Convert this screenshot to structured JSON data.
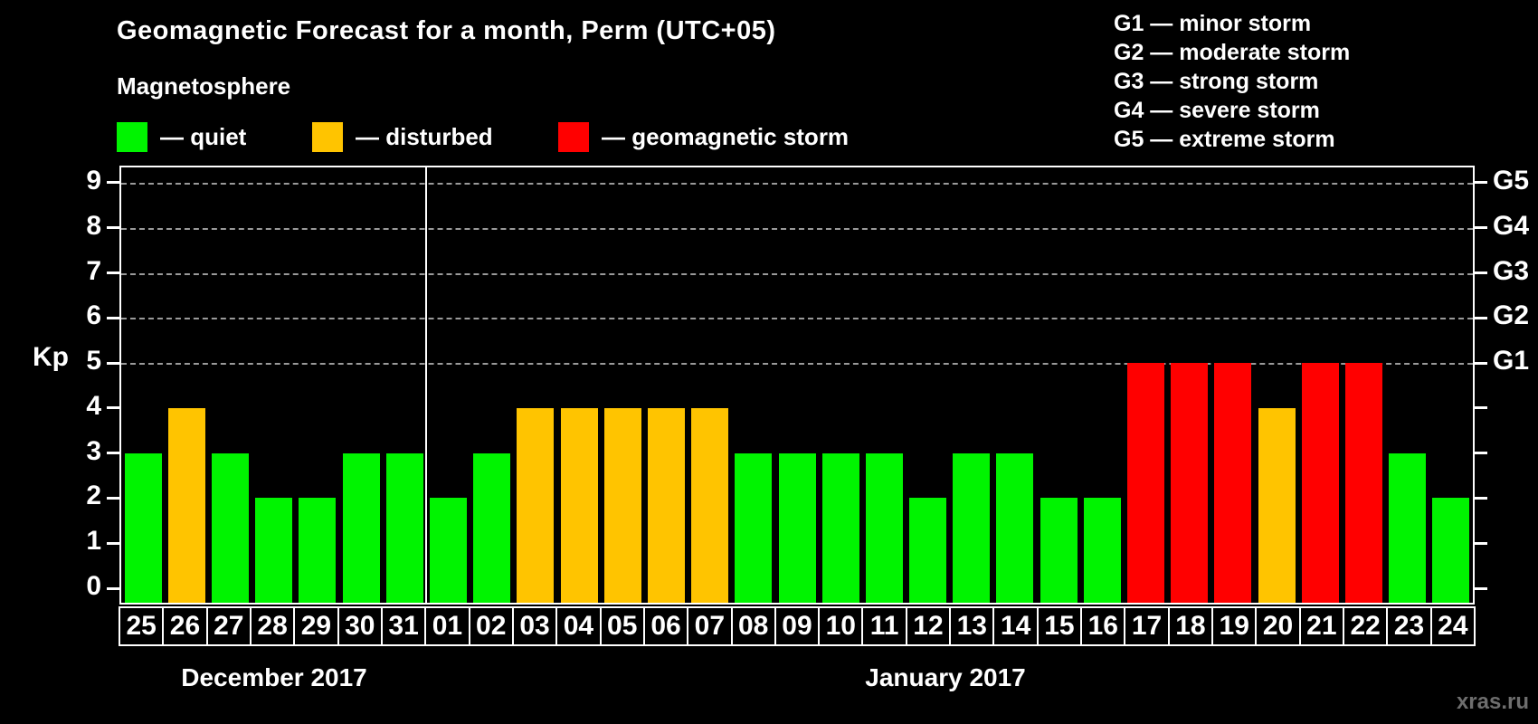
{
  "title": "Geomagnetic Forecast for a month, Perm (UTC+05)",
  "subtitle": "Magnetosphere",
  "legend": [
    {
      "status": "quiet",
      "label": "— quiet"
    },
    {
      "status": "disturbed",
      "label": "— disturbed"
    },
    {
      "status": "storm",
      "label": "— geomagnetic storm"
    }
  ],
  "colors": {
    "quiet": "#00F400",
    "disturbed": "#FFC400",
    "storm": "#FF0000"
  },
  "storm_scale": [
    "G1 — minor storm",
    "G2 — moderate storm",
    "G3 — strong storm",
    "G4 — severe storm",
    "G5 — extreme storm"
  ],
  "y_axis": {
    "label": "Kp",
    "ticks": [
      0,
      1,
      2,
      3,
      4,
      5,
      6,
      7,
      8,
      9
    ]
  },
  "right_axis": [
    {
      "kp": 5,
      "label": "G1"
    },
    {
      "kp": 6,
      "label": "G2"
    },
    {
      "kp": 7,
      "label": "G3"
    },
    {
      "kp": 8,
      "label": "G4"
    },
    {
      "kp": 9,
      "label": "G5"
    }
  ],
  "months": [
    {
      "label": "December 2017"
    },
    {
      "label": "January 2017"
    }
  ],
  "watermark": "xras.ru",
  "chart_data": {
    "type": "bar",
    "title": "Geomagnetic Forecast for a month, Perm (UTC+05)",
    "ylabel": "Kp",
    "ylim": [
      0,
      9
    ],
    "grid": "dashed horizontal at Kp 5-9 only",
    "legend_position": "top-left",
    "right_axis_labels": [
      "G1 at Kp5",
      "G2 at Kp6",
      "G3 at Kp7",
      "G4 at Kp8",
      "G5 at Kp9"
    ],
    "days": [
      {
        "month": "December 2017",
        "day": "25",
        "kp": 3,
        "status": "quiet"
      },
      {
        "month": "December 2017",
        "day": "26",
        "kp": 4,
        "status": "disturbed"
      },
      {
        "month": "December 2017",
        "day": "27",
        "kp": 3,
        "status": "quiet"
      },
      {
        "month": "December 2017",
        "day": "28",
        "kp": 2,
        "status": "quiet"
      },
      {
        "month": "December 2017",
        "day": "29",
        "kp": 2,
        "status": "quiet"
      },
      {
        "month": "December 2017",
        "day": "30",
        "kp": 3,
        "status": "quiet"
      },
      {
        "month": "December 2017",
        "day": "31",
        "kp": 3,
        "status": "quiet"
      },
      {
        "month": "January 2017",
        "day": "01",
        "kp": 2,
        "status": "quiet"
      },
      {
        "month": "January 2017",
        "day": "02",
        "kp": 3,
        "status": "quiet"
      },
      {
        "month": "January 2017",
        "day": "03",
        "kp": 4,
        "status": "disturbed"
      },
      {
        "month": "January 2017",
        "day": "04",
        "kp": 4,
        "status": "disturbed"
      },
      {
        "month": "January 2017",
        "day": "05",
        "kp": 4,
        "status": "disturbed"
      },
      {
        "month": "January 2017",
        "day": "06",
        "kp": 4,
        "status": "disturbed"
      },
      {
        "month": "January 2017",
        "day": "07",
        "kp": 4,
        "status": "disturbed"
      },
      {
        "month": "January 2017",
        "day": "08",
        "kp": 3,
        "status": "quiet"
      },
      {
        "month": "January 2017",
        "day": "09",
        "kp": 3,
        "status": "quiet"
      },
      {
        "month": "January 2017",
        "day": "10",
        "kp": 3,
        "status": "quiet"
      },
      {
        "month": "January 2017",
        "day": "11",
        "kp": 3,
        "status": "quiet"
      },
      {
        "month": "January 2017",
        "day": "12",
        "kp": 2,
        "status": "quiet"
      },
      {
        "month": "January 2017",
        "day": "13",
        "kp": 3,
        "status": "quiet"
      },
      {
        "month": "January 2017",
        "day": "14",
        "kp": 3,
        "status": "quiet"
      },
      {
        "month": "January 2017",
        "day": "15",
        "kp": 2,
        "status": "quiet"
      },
      {
        "month": "January 2017",
        "day": "16",
        "kp": 2,
        "status": "quiet"
      },
      {
        "month": "January 2017",
        "day": "17",
        "kp": 5,
        "status": "storm"
      },
      {
        "month": "January 2017",
        "day": "18",
        "kp": 5,
        "status": "storm"
      },
      {
        "month": "January 2017",
        "day": "19",
        "kp": 5,
        "status": "storm"
      },
      {
        "month": "January 2017",
        "day": "20",
        "kp": 4,
        "status": "disturbed"
      },
      {
        "month": "January 2017",
        "day": "21",
        "kp": 5,
        "status": "storm"
      },
      {
        "month": "January 2017",
        "day": "22",
        "kp": 5,
        "status": "storm"
      },
      {
        "month": "January 2017",
        "day": "23",
        "kp": 3,
        "status": "quiet"
      },
      {
        "month": "January 2017",
        "day": "24",
        "kp": 2,
        "status": "quiet"
      }
    ],
    "december_day_count": 7
  }
}
